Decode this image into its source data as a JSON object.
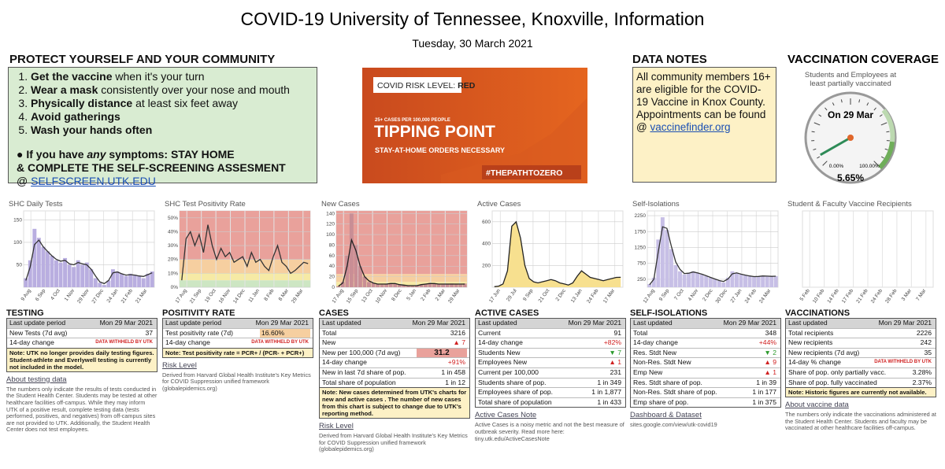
{
  "header": {
    "title": "COVID-19 University of Tennessee, Knoxville, Information",
    "date": "Tuesday, 30 March 2021"
  },
  "protect": {
    "heading": "PROTECT YOURSELF AND YOUR COMMUNITY",
    "items": [
      {
        "bold": "Get the vaccine",
        "rest": " when it's your turn"
      },
      {
        "bold": "Wear a mask",
        "rest": " consistently over your nose and mouth"
      },
      {
        "bold": "Physically distance",
        "rest": " at least six feet away"
      },
      {
        "bold": "Avoid gatherings",
        "rest": ""
      },
      {
        "bold": "Wash your hands often",
        "rest": ""
      }
    ],
    "symptoms_a": "● If you have ",
    "symptoms_em": "any",
    "symptoms_b": " symptoms: STAY HOME",
    "symptoms_c": "& COMPLETE THE SELF-SCREENING ASSESMENT",
    "at": "@ ",
    "link": "SELFSCREEN.UTK.EDU"
  },
  "risk_image": {
    "label": "COVID RISK LEVEL:",
    "level": "RED",
    "threshold": "25+ CASES PER 100,000 PEOPLE",
    "headline": "TIPPING POINT",
    "subline": "STAY-AT-HOME ORDERS NECESSARY",
    "hashtag": "#THEPATHTOZERO"
  },
  "data_notes": {
    "heading": "DATA NOTES",
    "text": "All community members 16+ are eligible for the COVID-19 Vaccine in Knox County. Appointments can be found @ ",
    "link": "vaccinefinder.org"
  },
  "vaccination_coverage": {
    "heading": "VACCINATION COVERAGE",
    "subtitle": "Students and Employees at least partially vaccinated",
    "date_label": "On 29 Mar",
    "value": 5.65,
    "value_label": "5.65%",
    "min": 0,
    "max": 100,
    "min_label": "0.00%",
    "max_label": "100.00%"
  },
  "chart_data": [
    {
      "type": "bar",
      "title": "SHC Daily Tests",
      "ylim": [
        0,
        170
      ],
      "yticks": [
        50,
        100,
        150
      ],
      "bar_color": "#b9aee0",
      "line_color": "#333333",
      "x_labels": [
        "9 Aug",
        "6 Sep",
        "4 Oct",
        "1 Nov",
        "29 Nov",
        "27 Dec",
        "24 Jan",
        "21 Feb",
        "21 Mar"
      ],
      "bars": [
        20,
        60,
        130,
        110,
        90,
        80,
        70,
        60,
        55,
        65,
        50,
        45,
        60,
        50,
        55,
        40,
        20,
        10,
        5,
        15,
        40,
        35,
        30,
        25,
        30,
        28,
        25,
        20,
        30,
        35
      ],
      "line": [
        15,
        45,
        95,
        105,
        90,
        80,
        70,
        62,
        58,
        60,
        52,
        50,
        55,
        52,
        50,
        40,
        25,
        12,
        8,
        15,
        32,
        34,
        30,
        27,
        28,
        27,
        25,
        24,
        28,
        32
      ]
    },
    {
      "type": "line",
      "title": "SHC Test Positivity Rate",
      "ylim": [
        0,
        55
      ],
      "yticks": [
        {
          "value": 0,
          "label": "0%"
        },
        {
          "value": 10,
          "label": "10%"
        },
        {
          "value": 20,
          "label": "20%"
        },
        {
          "value": 30,
          "label": "30%"
        },
        {
          "value": 40,
          "label": "40%"
        },
        {
          "value": 50,
          "label": "50%"
        }
      ],
      "line_color": "#333333",
      "bands": [
        {
          "from": 20,
          "to": 55,
          "color": "#e9a19b"
        },
        {
          "from": 10,
          "to": 20,
          "color": "#f6cfa0"
        },
        {
          "from": 5,
          "to": 10,
          "color": "#f6eaa5"
        },
        {
          "from": 0,
          "to": 5,
          "color": "#cde6c3"
        }
      ],
      "x_labels": [
        "17 Aug",
        "21 Sep",
        "19 Oct",
        "16 Nov",
        "14 Dec",
        "11 Jan",
        "8 Feb",
        "8 Mar",
        "29 Mar"
      ],
      "line": [
        5,
        35,
        40,
        30,
        38,
        25,
        45,
        30,
        20,
        28,
        22,
        25,
        18,
        20,
        22,
        15,
        25,
        18,
        20,
        15,
        12,
        22,
        30,
        18,
        15,
        10,
        12,
        15,
        18,
        17
      ]
    },
    {
      "type": "bar",
      "title": "New Cases",
      "ylim": [
        0,
        145
      ],
      "yticks": [
        0,
        20,
        40,
        60,
        80,
        100,
        120,
        140
      ],
      "bar_color": "#c98e95",
      "line_color": "#222222",
      "bands": [
        {
          "from": 25,
          "to": 145,
          "color": "#e9a19b"
        },
        {
          "from": 10,
          "to": 25,
          "color": "#f6cfa0"
        },
        {
          "from": 1,
          "to": 10,
          "color": "#f6eaa5"
        },
        {
          "from": 0,
          "to": 1,
          "color": "#cde6c3"
        }
      ],
      "x_labels": [
        "17 Aug",
        "15 Sep",
        "13 Oct",
        "10 Nov",
        "8 Dec",
        "5 Jan",
        "2 Feb",
        "2 Mar",
        "29 Mar"
      ],
      "bars": [
        2,
        10,
        60,
        140,
        80,
        40,
        20,
        10,
        8,
        6,
        5,
        6,
        8,
        7,
        5,
        4,
        3,
        2,
        3,
        5,
        6,
        8,
        7,
        6,
        5,
        6,
        7,
        6,
        5,
        7
      ],
      "line": [
        2,
        8,
        40,
        90,
        70,
        40,
        20,
        12,
        8,
        6,
        6,
        6,
        7,
        7,
        5,
        4,
        3,
        3,
        3,
        5,
        6,
        7,
        7,
        6,
        6,
        6,
        6,
        6,
        6,
        6
      ]
    },
    {
      "type": "area",
      "title": "Active Cases",
      "ylim": [
        0,
        700
      ],
      "yticks": [
        200,
        400,
        600
      ],
      "area_color": "#f7e08f",
      "line_color": "#222222",
      "x_labels": [
        "17 Jun",
        "29 Jul",
        "9 Sep",
        "21 Oct",
        "2 Dec",
        "13 Jan",
        "24 Feb",
        "17 Mar"
      ],
      "line": [
        5,
        10,
        30,
        150,
        560,
        600,
        450,
        200,
        80,
        50,
        40,
        50,
        60,
        70,
        60,
        40,
        30,
        20,
        40,
        100,
        150,
        120,
        90,
        80,
        70,
        60,
        70,
        80,
        90,
        91
      ]
    },
    {
      "type": "bar",
      "title": "Self-Isolations",
      "ylim": [
        0,
        2400
      ],
      "yticks": [
        250,
        750,
        1250,
        1750,
        2250
      ],
      "bar_color": "#c7bfe6",
      "line_color": "#333333",
      "x_labels": [
        "12 Aug",
        "9 Sep",
        "7 Oct",
        "4 Nov",
        "2 Dec",
        "30 Dec",
        "27 Jan",
        "24 Feb",
        "24 Mar"
      ],
      "bars": [
        100,
        300,
        1500,
        2200,
        1800,
        1200,
        700,
        500,
        400,
        450,
        500,
        450,
        400,
        350,
        300,
        250,
        200,
        150,
        300,
        500,
        450,
        400,
        380,
        350,
        330,
        340,
        360,
        350,
        340,
        348
      ],
      "line": [
        80,
        250,
        1100,
        1900,
        1850,
        1300,
        800,
        560,
        430,
        440,
        480,
        450,
        410,
        360,
        310,
        260,
        210,
        180,
        260,
        420,
        450,
        410,
        380,
        355,
        335,
        340,
        355,
        350,
        342,
        346
      ]
    },
    {
      "type": "bar",
      "title": "Student & Faculty Vaccine Recipients",
      "ylim": [
        0,
        100
      ],
      "yticks": [],
      "bar_color": "#b9aee0",
      "x_labels": [
        "5 Feb",
        "10 Feb",
        "14 Feb",
        "17 Feb",
        "21 Feb",
        "24 Feb",
        "28 Feb",
        "3 Mar",
        "7 Mar"
      ],
      "bars": []
    }
  ],
  "tables": [
    {
      "heading": "TESTING",
      "head": [
        "Last update period",
        "Mon 29 Mar 2021"
      ],
      "rows": [
        {
          "label": "New Tests (7d avg)",
          "value": 37
        },
        {
          "label": "14-day change",
          "value": "DATA WITHHELD BY UTK",
          "tone": "withheld"
        }
      ],
      "note": "Note: UTK no longer provides daily testing figures. Student-athlete and Everlywell testing is currently not included in the model.",
      "link": "About testing data",
      "footnote": "The numbers only indicate the results of tests conducted in the Student Health Center. Students may be tested at other healthcare facilities off-campus. While they may inform UTK of a positive result, complete testing data (tests performed, positives, and negatives) from off-campus sites are not provided to UTK. Additionally, the Student Health Center does not test employees."
    },
    {
      "heading": "POSITIVITY RATE",
      "head": [
        "Last update period",
        "Mon 29 Mar 2021"
      ],
      "rows": [
        {
          "label": "Test positivity rate (7d)",
          "value": "16.60%",
          "tone": "orange-bg"
        },
        {
          "label": "14-day change",
          "value": "DATA WITHHELD BY UTK",
          "tone": "withheld"
        }
      ],
      "note": "Note: Test positivity rate = PCR+ / (PCR- + PCR+)",
      "link": "Risk Level",
      "footnote": "Derived from Harvard Global Health Institute's Key Metrics for COVID Suppression unified framework (globalepidemics.org)"
    },
    {
      "heading": "CASES",
      "head": [
        "Last updated",
        "Mon 29 Mar 2021"
      ],
      "rows": [
        {
          "label": "Total",
          "value": 3216
        },
        {
          "label": "New",
          "value": "▲ 7",
          "tone": "red"
        },
        {
          "label": "New per 100,000 (7d avg)",
          "value": 31.2,
          "tone": "red-bg"
        },
        {
          "label": "14-day change",
          "value": "+91%",
          "tone": "red"
        },
        {
          "label": "New in last 7d share of pop.",
          "value": "1 in 458"
        },
        {
          "label": "Total share of population",
          "value": "1 in 12"
        }
      ],
      "note": "Note: New cases determined from UTK's charts for new and active cases . The number of new cases from this chart is subject to change due to UTK's reporting method.",
      "link": "Risk Level",
      "footnote": "Derived from Harvard Global Health Institute's Key Metrics for COVID Suppression unified framework (globalepidemics.org)"
    },
    {
      "heading": "ACTIVE CASES",
      "head": [
        "Last updated",
        "Mon 29 Mar 2021"
      ],
      "rows": [
        {
          "label": "Current",
          "value": 91
        },
        {
          "label": "14-day change",
          "value": "+82%",
          "tone": "red"
        },
        {
          "label": "Students New",
          "value": "▼ 7",
          "tone": "green"
        },
        {
          "label": "Employees New",
          "value": "▲ 1",
          "tone": "red"
        },
        {
          "label": "Current per 100,000",
          "value": 231
        },
        {
          "label": "Students share of pop.",
          "value": "1 in 349"
        },
        {
          "label": "Employees share of pop.",
          "value": "1 in 1,877"
        },
        {
          "label": "Total share of population",
          "value": "1 in 433"
        }
      ],
      "link": "Active Cases Note",
      "footnote": "Active Cases is a noisy metric and not the best measure of outbreak severity. Read more here: tiny.utk.edu/ActiveCasesNote"
    },
    {
      "heading": "SELF-ISOLATIONS",
      "head": [
        "Last updated",
        "Mon 29 Mar 2021"
      ],
      "rows": [
        {
          "label": "Total",
          "value": 348
        },
        {
          "label": "14-day change",
          "value": "+44%",
          "tone": "red"
        },
        {
          "label": "Res. Stdt New",
          "value": "▼ 2",
          "tone": "green"
        },
        {
          "label": "Non-Res. Stdt New",
          "value": "▲ 9",
          "tone": "red"
        },
        {
          "label": "Emp New",
          "value": "▲ 1",
          "tone": "red"
        },
        {
          "label": "Res. Stdt share of pop.",
          "value": "1 in 39"
        },
        {
          "label": "Non-Res. Stdt share of pop.",
          "value": "1 in 177"
        },
        {
          "label": "Emp share of pop.",
          "value": "1 in 375"
        }
      ],
      "link": "Dashboard & Dataset",
      "footnote": "sites.google.com/view/utk-covid19"
    },
    {
      "heading": "VACCINATIONS",
      "head": [
        "Last updated",
        "Mon 29 Mar 2021"
      ],
      "rows": [
        {
          "label": "Total recipients",
          "value": 2226
        },
        {
          "label": "New recipients",
          "value": 242
        },
        {
          "label": "New recipients (7d avg)",
          "value": 35
        },
        {
          "label": "14-day % change",
          "value": "DATA WITHHELD BY UTK",
          "tone": "withheld"
        },
        {
          "label": "Share of pop. only partially vacc.",
          "value": "3.28%"
        },
        {
          "label": "Share of pop. fully vaccinated",
          "value": "2.37%"
        }
      ],
      "note": "Note: Historic figures are currently not available.",
      "link": "About vaccine data",
      "footnote": "The numbers only indicate the vaccinations administered at the Student Health Center. Students and faculty may be vaccinated at other healthcare facilities off-campus."
    }
  ]
}
